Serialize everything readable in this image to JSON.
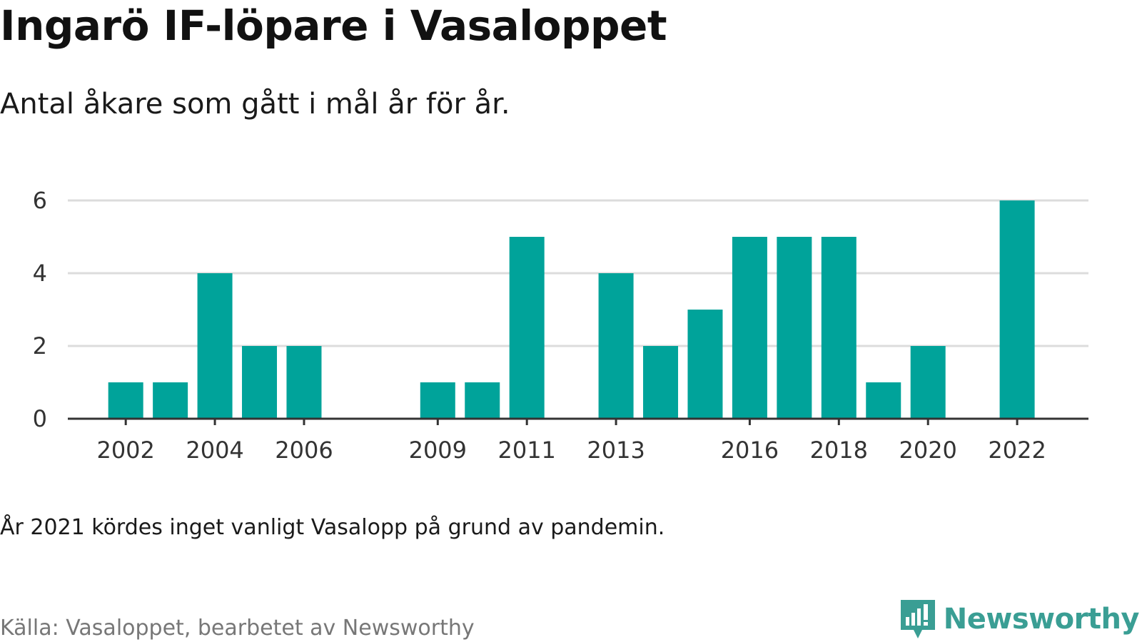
{
  "title": "Ingarö IF-löpare i Vasaloppet",
  "subtitle": "Antal åkare som gått i mål år för år.",
  "note": "År 2021 kördes inget vanligt Vasalopp på grund av pandemin.",
  "source": "Källa: Vasaloppet, bearbetet av Newsworthy",
  "brand": {
    "name": "Newsworthy",
    "icon": "newsworthy-logo-icon",
    "color": "#3a9e94"
  },
  "colors": {
    "bar": "#00a39a",
    "grid": "#dcdcdc",
    "axis": "#333333"
  },
  "chart_data": {
    "type": "bar",
    "title": "Ingarö IF-löpare i Vasaloppet",
    "subtitle": "Antal åkare som gått i mål år för år.",
    "xlabel": "",
    "ylabel": "",
    "x_range": [
      2000.7,
      2023.6
    ],
    "ylim": [
      0,
      6
    ],
    "yticks": [
      0,
      2,
      4,
      6
    ],
    "xticks": [
      2002,
      2004,
      2006,
      2009,
      2011,
      2013,
      2016,
      2018,
      2020,
      2022
    ],
    "grid": true,
    "legend": "none",
    "x": [
      2002,
      2003,
      2004,
      2005,
      2006,
      2009,
      2010,
      2011,
      2013,
      2014,
      2015,
      2016,
      2017,
      2018,
      2019,
      2020,
      2022
    ],
    "values": [
      1,
      1,
      4,
      2,
      2,
      1,
      1,
      5,
      4,
      2,
      3,
      5,
      5,
      5,
      1,
      2,
      6
    ]
  }
}
